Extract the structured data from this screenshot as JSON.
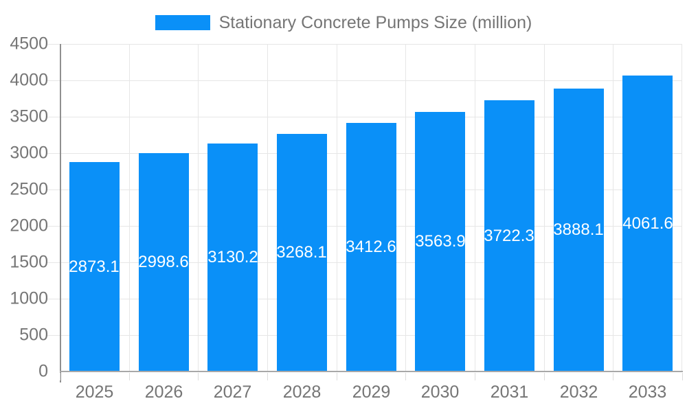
{
  "legend": {
    "label": "Stationary Concrete Pumps Size (million)"
  },
  "colors": {
    "bar": "#0a90f8",
    "grid": "#e6e6e6",
    "axis": "#9e9e9e",
    "tick_text": "#757575",
    "value_text": "#ffffff",
    "background": "#ffffff"
  },
  "chart_data": {
    "type": "bar",
    "title": "Stationary Concrete Pumps Size (million)",
    "categories": [
      "2025",
      "2026",
      "2027",
      "2028",
      "2029",
      "2030",
      "2031",
      "2032",
      "2033"
    ],
    "values": [
      2873.1,
      2998.6,
      3130.2,
      3268.1,
      3412.6,
      3563.9,
      3722.3,
      3888.1,
      4061.6
    ],
    "value_labels": [
      "2873.1",
      "2998.6",
      "3130.2",
      "3268.1",
      "3412.6",
      "3563.9",
      "3722.3",
      "3888.1",
      "4061.6"
    ],
    "xlabel": "",
    "ylabel": "",
    "ylim": [
      0,
      4500
    ],
    "ytick_step": 500,
    "ytick_labels": [
      "0",
      "500",
      "1000",
      "1500",
      "2000",
      "2500",
      "3000",
      "3500",
      "4000",
      "4500"
    ],
    "grid": true,
    "legend_position": "top",
    "value_label_position": "inside-center"
  }
}
